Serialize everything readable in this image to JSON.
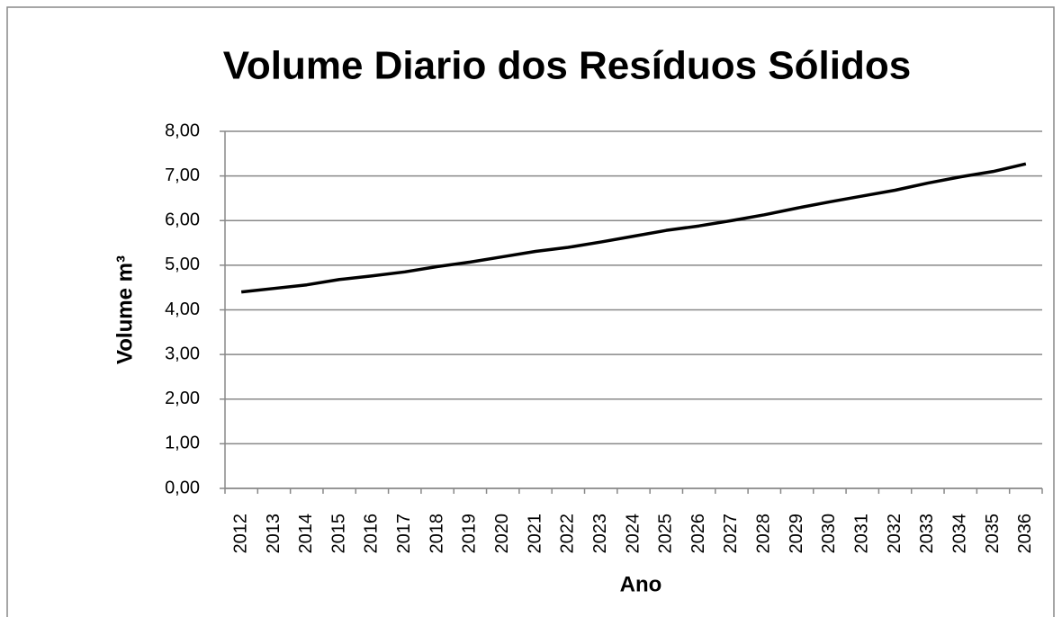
{
  "chart_data": {
    "type": "line",
    "title": "Volume Diario dos Resíduos Sólidos",
    "x_label": "Ano",
    "y_label": "Volume m³",
    "categories": [
      "2012",
      "2013",
      "2014",
      "2015",
      "2016",
      "2017",
      "2018",
      "2019",
      "2020",
      "2021",
      "2022",
      "2023",
      "2024",
      "2025",
      "2026",
      "2027",
      "2028",
      "2029",
      "2030",
      "2031",
      "2032",
      "2033",
      "2034",
      "2035",
      "2036"
    ],
    "series": [
      {
        "name": "Volume",
        "color": "#000000",
        "values": [
          4.4,
          4.48,
          4.56,
          4.68,
          4.76,
          4.85,
          4.97,
          5.07,
          5.19,
          5.31,
          5.4,
          5.52,
          5.65,
          5.78,
          5.88,
          6.0,
          6.13,
          6.28,
          6.42,
          6.55,
          6.68,
          6.84,
          6.98,
          7.1,
          7.27
        ]
      }
    ],
    "ylim": [
      0,
      8
    ],
    "yticks": [
      {
        "value": 0,
        "label": "0,00"
      },
      {
        "value": 1,
        "label": "1,00"
      },
      {
        "value": 2,
        "label": "2,00"
      },
      {
        "value": 3,
        "label": "3,00"
      },
      {
        "value": 4,
        "label": "4,00"
      },
      {
        "value": 5,
        "label": "5,00"
      },
      {
        "value": 6,
        "label": "6,00"
      },
      {
        "value": 7,
        "label": "7,00"
      },
      {
        "value": 8,
        "label": "8,00"
      }
    ],
    "grid": true
  }
}
